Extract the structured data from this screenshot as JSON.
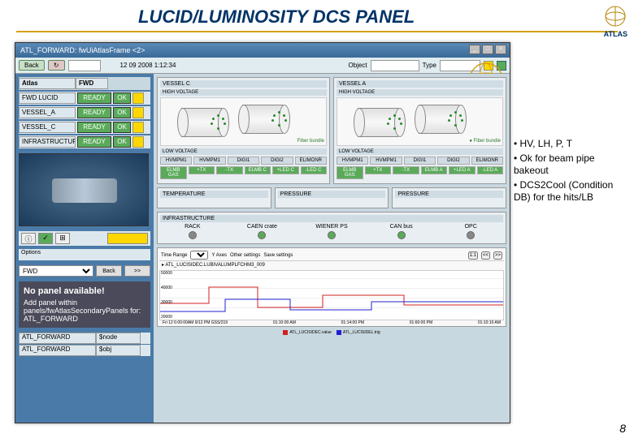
{
  "slide": {
    "title": "LUCID/LUMINOSITY DCS PANEL",
    "atlas_label": "ATLAS",
    "page_number": "8"
  },
  "annotations": [
    "• HV, LH, P, T",
    "• Ok for beam pipe bakeout",
    "• DCS2Cool (Condition DB) for the hits/LB"
  ],
  "window": {
    "title": "ATL_FORWARD: fwUiAtlasFrame <2>",
    "buttons": {
      "min": "_",
      "max": "□",
      "close": "×"
    }
  },
  "toolbar": {
    "back_btn": "Back",
    "refresh_btn": "↻",
    "timestamp": "12 09 2008  1:12:34",
    "object_lbl": "Object",
    "type_lbl": "Type"
  },
  "breadcrumb": {
    "atlas": "Atlas",
    "fwd": "FWD"
  },
  "fsm_tree": [
    {
      "name": "FWD LUCID",
      "state": "READY",
      "status": "OK"
    },
    {
      "name": "VESSEL_A",
      "state": "READY",
      "status": "OK"
    },
    {
      "name": "VESSEL_C",
      "state": "READY",
      "status": "OK"
    },
    {
      "name": "INFRASTRUCTURE",
      "state": "READY",
      "status": "OK"
    }
  ],
  "nav": {
    "select_val": "FWD",
    "back": "Back",
    "fwd": ">>"
  },
  "message_panel": {
    "title": "No panel available!",
    "body": "Add panel within panels/fwAtlasSecondaryPanels for: ATL_FORWARD"
  },
  "bottom_tree": [
    {
      "name": "ATL_FORWARD",
      "type": "$node"
    },
    {
      "name": "ATL_FORWARD",
      "type": "$obj"
    }
  ],
  "vessels": {
    "c": {
      "title": "VESSEL C",
      "hv_label": "HIGH VOLTAGE",
      "fiber": "Fiber bundle"
    },
    "a": {
      "title": "VESSEL A",
      "hv_label": "HIGH VOLTAGE",
      "fiber": "Fiber bundle"
    }
  },
  "lv_section": {
    "title": "LOW VOLTAGE",
    "cols_c": [
      "HVMPM1",
      "HVMPM1",
      "DIGI1",
      "DIGI2",
      "ELIMONR"
    ],
    "row1_lbl": "ELMB GAS",
    "row1_vals": [
      "+TX",
      "-TX",
      "ELMB C",
      "+LED C",
      "-LED C"
    ],
    "cols_a": [
      "HVMPM1",
      "HVMPM1",
      "DIGI1",
      "DIGI2",
      "ELIMONR"
    ],
    "row2_vals": [
      "+TX",
      "-TX",
      "ELMB A",
      "+LED A",
      "-LED A"
    ]
  },
  "env": {
    "temp": "TEMPERATURE",
    "press": "PRESSURE",
    "press2": "PRESSURE"
  },
  "infra": {
    "title": "INFRASTRUCTURE",
    "items": [
      {
        "name": "RACK",
        "color": "#888888"
      },
      {
        "name": "CAEN crate",
        "color": "#5aaa5a"
      },
      {
        "name": "WIENER PS",
        "color": "#5aaa5a"
      },
      {
        "name": "CAN bus",
        "color": "#5aaa5a"
      },
      {
        "name": "OPC",
        "color": "#888888"
      }
    ]
  },
  "trend": {
    "toolbar": {
      "range": "Time Range",
      "axes": "Y Axes",
      "other": "Other settings",
      "save": "Save settings",
      "zoom": "1:1"
    },
    "signal": "ATL_LUCISIDEC.LUBIVALUMPLFCHM3_009",
    "xaxis": [
      "Fri 12 6:00:00AM 9/12 PM GSS/219",
      "01:10:00 AM",
      "01:14:00 PM",
      "01:60:00 PM",
      "01:10:10 AM"
    ],
    "legend": [
      {
        "label": "ATL_LUCISIDEC.value",
        "color": "#d02020"
      },
      {
        "label": "ATL_LUCISIDEL.trig",
        "color": "#2020d0"
      }
    ],
    "y_grid": [
      "20000",
      "30000",
      "40000",
      "50000"
    ],
    "line_colors": [
      "#d02020",
      "#2020d0",
      "#d02020"
    ]
  },
  "colors": {
    "accent_blue": "#4a7aa8",
    "ok_green": "#5aaa5a",
    "warn_yellow": "#ffd700",
    "panel_bg": "#e8eef2",
    "gold_rule": "#d4a017"
  }
}
